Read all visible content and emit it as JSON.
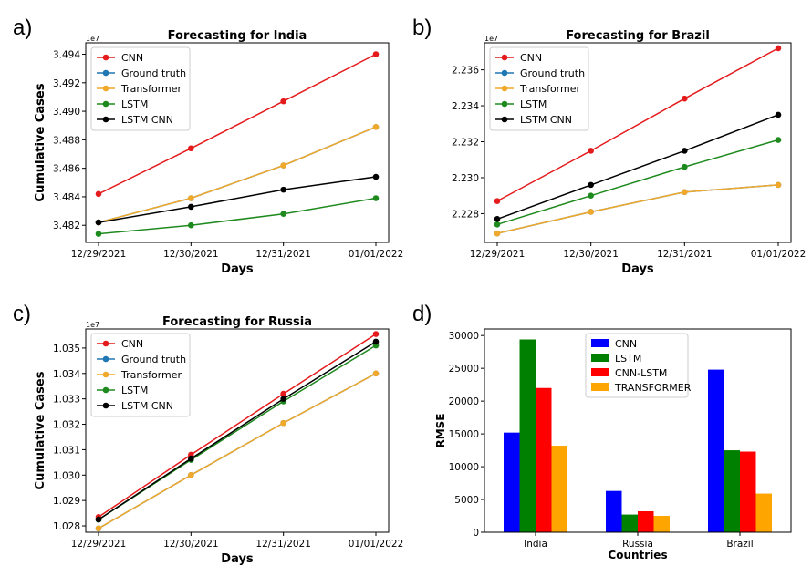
{
  "figure": {
    "panel_labels": [
      "a)",
      "b)",
      "c)",
      "d)"
    ]
  },
  "chart_data": [
    {
      "type": "line",
      "title": "Forecasting for India",
      "xlabel": "Days",
      "ylabel": "Cumulative Cases",
      "y_offset_text": "1e7",
      "categories": [
        "12/29/2021",
        "12/30/2021",
        "12/31/2021",
        "01/01/2022"
      ],
      "yticks": [
        "3.482",
        "3.484",
        "3.486",
        "3.488",
        "3.490",
        "3.492",
        "3.494"
      ],
      "ytick_values": [
        3.482,
        3.484,
        3.486,
        3.488,
        3.49,
        3.492,
        3.494
      ],
      "ylim": [
        3.4808,
        3.4948
      ],
      "legend_position": "top-left",
      "series": [
        {
          "name": "CNN",
          "color": "#e41a1c",
          "values": [
            3.4842,
            3.4874,
            3.4907,
            3.494
          ]
        },
        {
          "name": "Ground truth",
          "color": "#1f77b4",
          "values": [
            3.4822,
            3.4839,
            3.4862,
            3.4889
          ]
        },
        {
          "name": "Transformer",
          "color": "#f0a92a",
          "values": [
            3.4822,
            3.4839,
            3.4862,
            3.4889
          ]
        },
        {
          "name": "LSTM",
          "color": "#1e8a1e",
          "values": [
            3.4814,
            3.482,
            3.4828,
            3.4839
          ]
        },
        {
          "name": "LSTM CNN",
          "color": "#000000",
          "values": [
            3.4822,
            3.4833,
            3.4845,
            3.4854
          ]
        }
      ]
    },
    {
      "type": "line",
      "title": "Forecasting for Brazil",
      "xlabel": "Days",
      "ylabel": "Cumulative Cases",
      "y_offset_text": "1e7",
      "categories": [
        "12/29/2021",
        "12/30/2021",
        "12/31/2021",
        "01/01/2022"
      ],
      "yticks": [
        "2.228",
        "2.230",
        "2.232",
        "2.234",
        "2.236"
      ],
      "ytick_values": [
        2.228,
        2.23,
        2.232,
        2.234,
        2.236
      ],
      "ylim": [
        2.2264,
        2.2375
      ],
      "legend_position": "top-left",
      "series": [
        {
          "name": "CNN",
          "color": "#e41a1c",
          "values": [
            2.2287,
            2.2315,
            2.2344,
            2.2372
          ]
        },
        {
          "name": "Ground truth",
          "color": "#1f77b4",
          "values": [
            2.2269,
            2.2281,
            2.2292,
            2.2296
          ]
        },
        {
          "name": "Transformer",
          "color": "#f0a92a",
          "values": [
            2.2269,
            2.2281,
            2.2292,
            2.2296
          ]
        },
        {
          "name": "LSTM",
          "color": "#1e8a1e",
          "values": [
            2.2274,
            2.229,
            2.2306,
            2.2321
          ]
        },
        {
          "name": "LSTM CNN",
          "color": "#000000",
          "values": [
            2.2277,
            2.2296,
            2.2315,
            2.2335
          ]
        }
      ]
    },
    {
      "type": "line",
      "title": "Forecasting for Russia",
      "xlabel": "Days",
      "ylabel": "Cumulative Cases",
      "y_offset_text": "1e7",
      "categories": [
        "12/29/2021",
        "12/30/2021",
        "12/31/2021",
        "01/01/2022"
      ],
      "yticks": [
        "1.028",
        "1.029",
        "1.030",
        "1.031",
        "1.032",
        "1.033",
        "1.034",
        "1.035"
      ],
      "ytick_values": [
        1.028,
        1.029,
        1.03,
        1.031,
        1.032,
        1.033,
        1.034,
        1.035
      ],
      "ylim": [
        1.02775,
        1.03575
      ],
      "legend_position": "top-left",
      "series": [
        {
          "name": "CNN",
          "color": "#e41a1c",
          "values": [
            1.02835,
            1.0308,
            1.0332,
            1.03555
          ]
        },
        {
          "name": "Ground truth",
          "color": "#1f77b4",
          "values": [
            1.0279,
            1.03,
            1.03205,
            1.034
          ]
        },
        {
          "name": "Transformer",
          "color": "#f0a92a",
          "values": [
            1.0279,
            1.03,
            1.03205,
            1.034
          ]
        },
        {
          "name": "LSTM",
          "color": "#1e8a1e",
          "values": [
            1.02825,
            1.0306,
            1.0329,
            1.0351
          ]
        },
        {
          "name": "LSTM CNN",
          "color": "#000000",
          "values": [
            1.02825,
            1.03065,
            1.033,
            1.03525
          ]
        }
      ]
    },
    {
      "type": "bar",
      "title": "",
      "xlabel": "Countries",
      "ylabel": "RMSE",
      "categories": [
        "India",
        "Russia",
        "Brazil"
      ],
      "yticks": [
        "0",
        "5000",
        "10000",
        "15000",
        "20000",
        "25000",
        "30000"
      ],
      "ytick_values": [
        0,
        5000,
        10000,
        15000,
        20000,
        25000,
        30000
      ],
      "ylim": [
        0,
        31000
      ],
      "legend_position": "top-center",
      "series": [
        {
          "name": "CNN",
          "color": "#0000ff",
          "values": [
            15200,
            6300,
            24800
          ]
        },
        {
          "name": "LSTM",
          "color": "#008000",
          "values": [
            29400,
            2700,
            12500
          ]
        },
        {
          "name": "CNN-LSTM",
          "color": "#ff0000",
          "values": [
            22000,
            3200,
            12300
          ]
        },
        {
          "name": "TRANSFORMER",
          "color": "#ffa500",
          "values": [
            13200,
            2500,
            5900
          ]
        }
      ]
    }
  ]
}
